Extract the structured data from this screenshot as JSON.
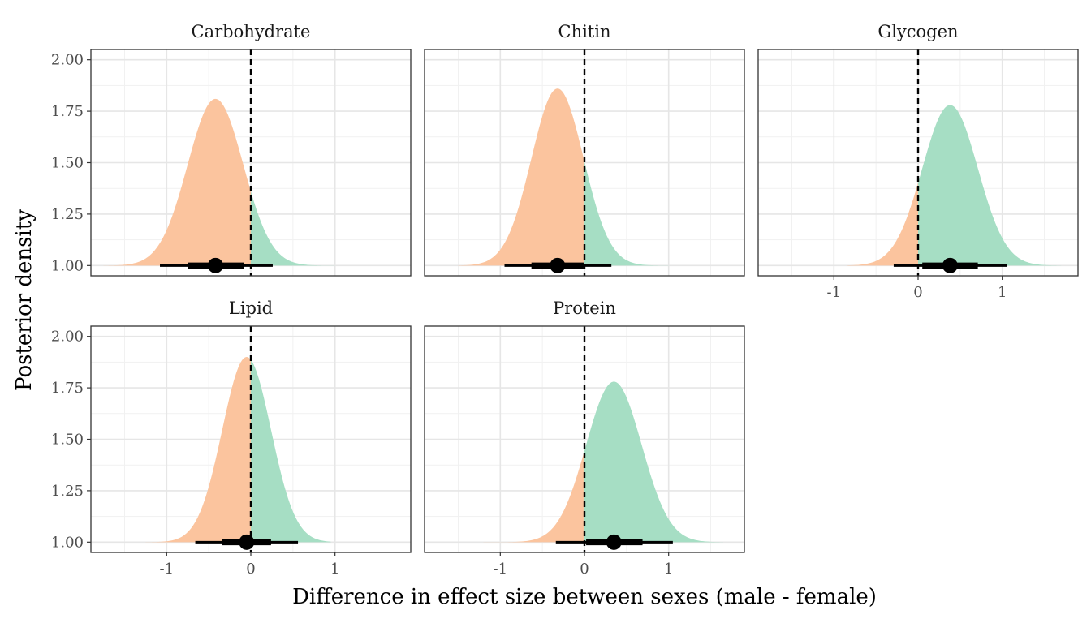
{
  "chart_data": {
    "type": "area",
    "xlabel": "Difference in effect size between sexes (male - female)",
    "ylabel": "Posterior density",
    "xlim": [
      -1.9,
      1.9
    ],
    "ylim": [
      0.95,
      2.05
    ],
    "x_ticks": [
      "-1",
      "0",
      "1"
    ],
    "y_ticks": [
      "1.00",
      "1.25",
      "1.50",
      "1.75",
      "2.00"
    ],
    "reference_line_x": 0,
    "fill_colors": {
      "negative": "#fbc49e",
      "positive": "#a6dec4"
    },
    "grid": true,
    "panels": [
      {
        "name": "Carbohydrate",
        "mean": -0.42,
        "sd": 0.33,
        "peak": 1.81,
        "x_range": [
          -1.75,
          1.0
        ],
        "point": -0.42,
        "interval_66": [
          -0.75,
          -0.08
        ],
        "interval_95": [
          -1.08,
          0.26
        ]
      },
      {
        "name": "Chitin",
        "mean": -0.32,
        "sd": 0.31,
        "peak": 1.86,
        "x_range": [
          -1.5,
          1.0
        ],
        "point": -0.32,
        "interval_66": [
          -0.63,
          -0.01
        ],
        "interval_95": [
          -0.95,
          0.32
        ]
      },
      {
        "name": "Glycogen",
        "mean": 0.38,
        "sd": 0.33,
        "peak": 1.78,
        "x_range": [
          -0.85,
          1.7
        ],
        "point": 0.38,
        "interval_66": [
          0.05,
          0.71
        ],
        "interval_95": [
          -0.29,
          1.06
        ]
      },
      {
        "name": "Lipid",
        "mean": -0.05,
        "sd": 0.29,
        "peak": 1.9,
        "x_range": [
          -1.25,
          0.95
        ],
        "point": -0.05,
        "interval_66": [
          -0.34,
          0.24
        ],
        "interval_95": [
          -0.66,
          0.56
        ]
      },
      {
        "name": "Protein",
        "mean": 0.35,
        "sd": 0.33,
        "peak": 1.78,
        "x_range": [
          -1.3,
          1.65
        ],
        "point": 0.35,
        "interval_66": [
          0.02,
          0.69
        ],
        "interval_95": [
          -0.34,
          1.05
        ]
      }
    ]
  }
}
